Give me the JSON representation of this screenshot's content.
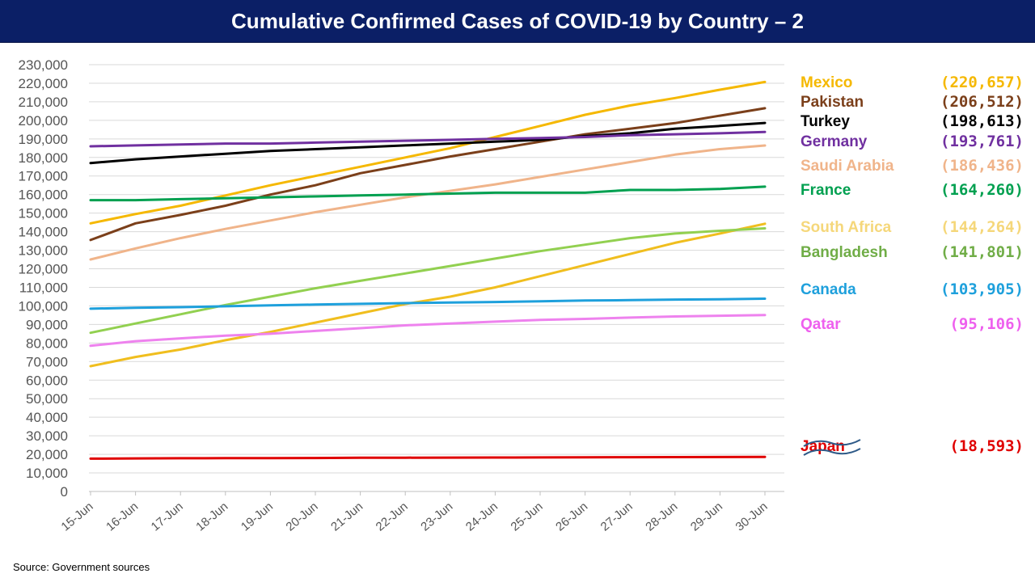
{
  "title": "Cumulative Confirmed Cases of COVID-19 by Country – 2",
  "source": "Source: Government  sources",
  "chart_data": {
    "type": "line",
    "title": "Cumulative Confirmed Cases of COVID-19 by Country – 2",
    "xlabel": "",
    "ylabel": "",
    "ylim": [
      0,
      230000
    ],
    "y_ticks": [
      "0",
      "10,000",
      "20,000",
      "30,000",
      "40,000",
      "50,000",
      "60,000",
      "70,000",
      "80,000",
      "90,000",
      "100,000",
      "110,000",
      "120,000",
      "130,000",
      "140,000",
      "150,000",
      "160,000",
      "170,000",
      "180,000",
      "190,000",
      "200,000",
      "210,000",
      "220,000",
      "230,000"
    ],
    "categories": [
      "15-Jun",
      "16-Jun",
      "17-Jun",
      "18-Jun",
      "19-Jun",
      "20-Jun",
      "21-Jun",
      "22-Jun",
      "23-Jun",
      "24-Jun",
      "25-Jun",
      "26-Jun",
      "27-Jun",
      "28-Jun",
      "29-Jun",
      "30-Jun"
    ],
    "grid": true,
    "axis_break": true,
    "series": [
      {
        "name": "Mexico",
        "label": "(220,657)",
        "color": "#f5b800",
        "label_color": "#f5b800",
        "values": [
          144500,
          149500,
          154000,
          159500,
          165000,
          170000,
          175000,
          180000,
          185000,
          191000,
          197000,
          203000,
          208000,
          212000,
          216500,
          220657
        ]
      },
      {
        "name": "Pakistan",
        "label": "(206,512)",
        "color": "#7b3f1a",
        "label_color": "#7b3f1a",
        "values": [
          135500,
          144500,
          149000,
          154000,
          160000,
          165000,
          171500,
          176000,
          180500,
          184500,
          188500,
          192500,
          195500,
          198500,
          202500,
          206512
        ]
      },
      {
        "name": "Turkey",
        "label": "(198,613)",
        "color": "#000000",
        "label_color": "#000000",
        "values": [
          177000,
          179000,
          180500,
          182000,
          183500,
          184500,
          185500,
          186500,
          187500,
          188500,
          189500,
          191500,
          193000,
          195500,
          197000,
          198613
        ]
      },
      {
        "name": "Germany",
        "label": "(193,761)",
        "color": "#7030a0",
        "label_color": "#7030a0",
        "values": [
          186000,
          186500,
          187000,
          187500,
          187500,
          188000,
          188500,
          189000,
          189500,
          190000,
          190500,
          191000,
          192000,
          192500,
          193000,
          193761
        ]
      },
      {
        "name": "Saudi Arabia",
        "label": "(186,436)",
        "color": "#f0b48a",
        "label_color": "#f0b48a",
        "values": [
          125000,
          131000,
          136500,
          141500,
          146000,
          150500,
          154500,
          158500,
          162000,
          165500,
          169500,
          173500,
          177500,
          181500,
          184500,
          186436
        ]
      },
      {
        "name": "France",
        "label": "(164,260)",
        "color": "#00a050",
        "label_color": "#00a050",
        "values": [
          157000,
          157000,
          157500,
          158000,
          158500,
          159000,
          159500,
          160000,
          160500,
          161000,
          161000,
          161000,
          162500,
          162500,
          163000,
          164260
        ]
      },
      {
        "name": "South Africa",
        "label": "(144,264)",
        "color": "#f0be1e",
        "label_color": "#f5d77a",
        "values": [
          67500,
          72500,
          76500,
          81500,
          86000,
          91000,
          96000,
          101000,
          105000,
          110000,
          116000,
          122000,
          128000,
          134000,
          139000,
          144264
        ]
      },
      {
        "name": "Bangladesh",
        "label": "(141,801)",
        "color": "#92d050",
        "label_color": "#70ad47",
        "values": [
          85500,
          90500,
          95500,
          100500,
          105000,
          109500,
          113500,
          117500,
          121500,
          125500,
          129500,
          133000,
          136500,
          139000,
          140500,
          141801
        ]
      },
      {
        "name": "Canada",
        "label": "(103,905)",
        "color": "#1ea0dc",
        "label_color": "#1ea0dc",
        "values": [
          98500,
          99000,
          99300,
          99800,
          100300,
          100700,
          101100,
          101500,
          101800,
          102100,
          102500,
          102900,
          103100,
          103400,
          103600,
          103905
        ]
      },
      {
        "name": "Qatar",
        "label": "(95,106)",
        "color": "#ee82ee",
        "label_color": "#ee60ee",
        "values": [
          78500,
          81000,
          82500,
          84000,
          85000,
          86500,
          88000,
          89500,
          90500,
          91500,
          92500,
          93000,
          93700,
          94300,
          94700,
          95106
        ]
      },
      {
        "name": "Japan",
        "label": "(18,593)",
        "color": "#e00000",
        "label_color": "#e00000",
        "values": [
          17700,
          17800,
          17900,
          17950,
          18000,
          18050,
          18150,
          18200,
          18250,
          18300,
          18350,
          18400,
          18450,
          18500,
          18550,
          18593
        ]
      }
    ]
  }
}
